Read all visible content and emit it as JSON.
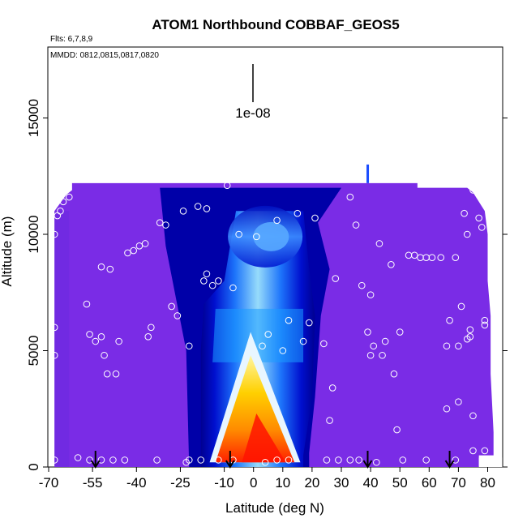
{
  "chart_data": {
    "type": "heatmap",
    "title": "ATOM1 Northbound COBBAF_GEOS5",
    "flights_label": "Flts: 6,7,8,9",
    "dates_label": "MMDD: 0812,0815,0817,0820",
    "scale_label": "1e-08",
    "xlabel": "Latitude (deg N)",
    "ylabel": "Altitude (m)",
    "xlim": [
      -70,
      85
    ],
    "ylim": [
      0,
      18000
    ],
    "x_ticks": [
      -70,
      -55,
      -40,
      -25,
      -10,
      0,
      10,
      20,
      30,
      40,
      50,
      60,
      70,
      80
    ],
    "x_tick_labels": [
      "-70",
      "-55",
      "-40",
      "-25",
      "-10",
      "0",
      "10",
      "20",
      "30",
      "40",
      "50",
      "60",
      "70",
      "80"
    ],
    "y_ticks": [
      0,
      5000,
      10000,
      15000
    ],
    "y_tick_labels": [
      "0",
      "5000",
      "10000",
      "15000"
    ],
    "grid": false,
    "colors": {
      "background_field": "#7a2ce6",
      "field_edge": "#6a2ae0",
      "dark_blue": "#0000a8",
      "blue": "#1a4cff",
      "light_blue": "#8fd8ff",
      "yellow": "#ffd000",
      "orange": "#ff8a00",
      "red": "#ff1400",
      "marker": "#ffffff",
      "arrow": "#000000"
    },
    "profile_markers": [
      -54,
      -8,
      39,
      67
    ],
    "sample_points": [
      {
        "x": -68,
        "y": 10000
      },
      {
        "x": -67,
        "y": 10800
      },
      {
        "x": -66,
        "y": 11000
      },
      {
        "x": -65,
        "y": 11400
      },
      {
        "x": -63,
        "y": 11600
      },
      {
        "x": -68,
        "y": 6000
      },
      {
        "x": -68,
        "y": 4800
      },
      {
        "x": -68,
        "y": 300
      },
      {
        "x": -57,
        "y": 7000
      },
      {
        "x": -56,
        "y": 5700
      },
      {
        "x": -52,
        "y": 5600
      },
      {
        "x": -54,
        "y": 5400
      },
      {
        "x": -52,
        "y": 8600
      },
      {
        "x": -49,
        "y": 8500
      },
      {
        "x": -51,
        "y": 4800
      },
      {
        "x": -50,
        "y": 4000
      },
      {
        "x": -47,
        "y": 4000
      },
      {
        "x": -46,
        "y": 5400
      },
      {
        "x": -43,
        "y": 9200
      },
      {
        "x": -41,
        "y": 9300
      },
      {
        "x": -39,
        "y": 9500
      },
      {
        "x": -37,
        "y": 9600
      },
      {
        "x": -36,
        "y": 5600
      },
      {
        "x": -35,
        "y": 6000
      },
      {
        "x": -32,
        "y": 10500
      },
      {
        "x": -30,
        "y": 10400
      },
      {
        "x": -28,
        "y": 6900
      },
      {
        "x": -26,
        "y": 6500
      },
      {
        "x": -24,
        "y": 11000
      },
      {
        "x": -22,
        "y": 5200
      },
      {
        "x": -22,
        "y": 300
      },
      {
        "x": -19,
        "y": 11200
      },
      {
        "x": -17,
        "y": 8000
      },
      {
        "x": -16,
        "y": 8300
      },
      {
        "x": -16,
        "y": 11100
      },
      {
        "x": -14,
        "y": 7800
      },
      {
        "x": -12,
        "y": 8000
      },
      {
        "x": -9,
        "y": 12100
      },
      {
        "x": -7,
        "y": 7700
      },
      {
        "x": -5,
        "y": 10000
      },
      {
        "x": 1,
        "y": 9900
      },
      {
        "x": 3,
        "y": 5200
      },
      {
        "x": 5,
        "y": 5700
      },
      {
        "x": 8,
        "y": 10600
      },
      {
        "x": 10,
        "y": 5000
      },
      {
        "x": 12,
        "y": 6300
      },
      {
        "x": 15,
        "y": 10900
      },
      {
        "x": 17,
        "y": 5400
      },
      {
        "x": 19,
        "y": 6200
      },
      {
        "x": 21,
        "y": 10700
      },
      {
        "x": 24,
        "y": 5300
      },
      {
        "x": 25,
        "y": 300
      },
      {
        "x": 26,
        "y": 2000
      },
      {
        "x": 27,
        "y": 3400
      },
      {
        "x": 28,
        "y": 8100
      },
      {
        "x": 33,
        "y": 11600
      },
      {
        "x": 35,
        "y": 10400
      },
      {
        "x": 37,
        "y": 7800
      },
      {
        "x": 39,
        "y": 5800
      },
      {
        "x": 40,
        "y": 4800
      },
      {
        "x": 40,
        "y": 7400
      },
      {
        "x": 41,
        "y": 5200
      },
      {
        "x": 42,
        "y": 200
      },
      {
        "x": 43,
        "y": 9600
      },
      {
        "x": 44,
        "y": 4800
      },
      {
        "x": 45,
        "y": 5400
      },
      {
        "x": 47,
        "y": 8700
      },
      {
        "x": 48,
        "y": 4000
      },
      {
        "x": 49,
        "y": 1600
      },
      {
        "x": 50,
        "y": 5800
      },
      {
        "x": 53,
        "y": 9100
      },
      {
        "x": 55,
        "y": 9100
      },
      {
        "x": 57,
        "y": 9000
      },
      {
        "x": 59,
        "y": 9000
      },
      {
        "x": 61,
        "y": 9000
      },
      {
        "x": 64,
        "y": 9000
      },
      {
        "x": 66,
        "y": 5200
      },
      {
        "x": 66,
        "y": 2500
      },
      {
        "x": 67,
        "y": 6300
      },
      {
        "x": 69,
        "y": 9000
      },
      {
        "x": 70,
        "y": 5200
      },
      {
        "x": 70,
        "y": 2800
      },
      {
        "x": 71,
        "y": 6900
      },
      {
        "x": 72,
        "y": 10900
      },
      {
        "x": 73,
        "y": 10000
      },
      {
        "x": 73,
        "y": 5500
      },
      {
        "x": 74,
        "y": 5900
      },
      {
        "x": 74,
        "y": 5600
      },
      {
        "x": 75,
        "y": 2200
      },
      {
        "x": 75,
        "y": 700
      },
      {
        "x": 75,
        "y": 11900
      },
      {
        "x": 77,
        "y": 10700
      },
      {
        "x": 78,
        "y": 10300
      },
      {
        "x": 79,
        "y": 6300
      },
      {
        "x": 79,
        "y": 6100
      },
      {
        "x": 79,
        "y": 700
      },
      {
        "x": 69,
        "y": 300
      },
      {
        "x": 59,
        "y": 300
      },
      {
        "x": 51,
        "y": 300
      },
      {
        "x": 36,
        "y": 300
      },
      {
        "x": 33,
        "y": 300
      },
      {
        "x": 29,
        "y": 300
      },
      {
        "x": 12,
        "y": 300
      },
      {
        "x": 8,
        "y": 300
      },
      {
        "x": 4,
        "y": 200
      },
      {
        "x": -7,
        "y": 300
      },
      {
        "x": -12,
        "y": 300
      },
      {
        "x": -18,
        "y": 300
      },
      {
        "x": -23,
        "y": 200
      },
      {
        "x": -33,
        "y": 300
      },
      {
        "x": -44,
        "y": 300
      },
      {
        "x": -48,
        "y": 300
      },
      {
        "x": -52,
        "y": 300
      },
      {
        "x": -56,
        "y": 300
      },
      {
        "x": -60,
        "y": 400
      }
    ]
  }
}
